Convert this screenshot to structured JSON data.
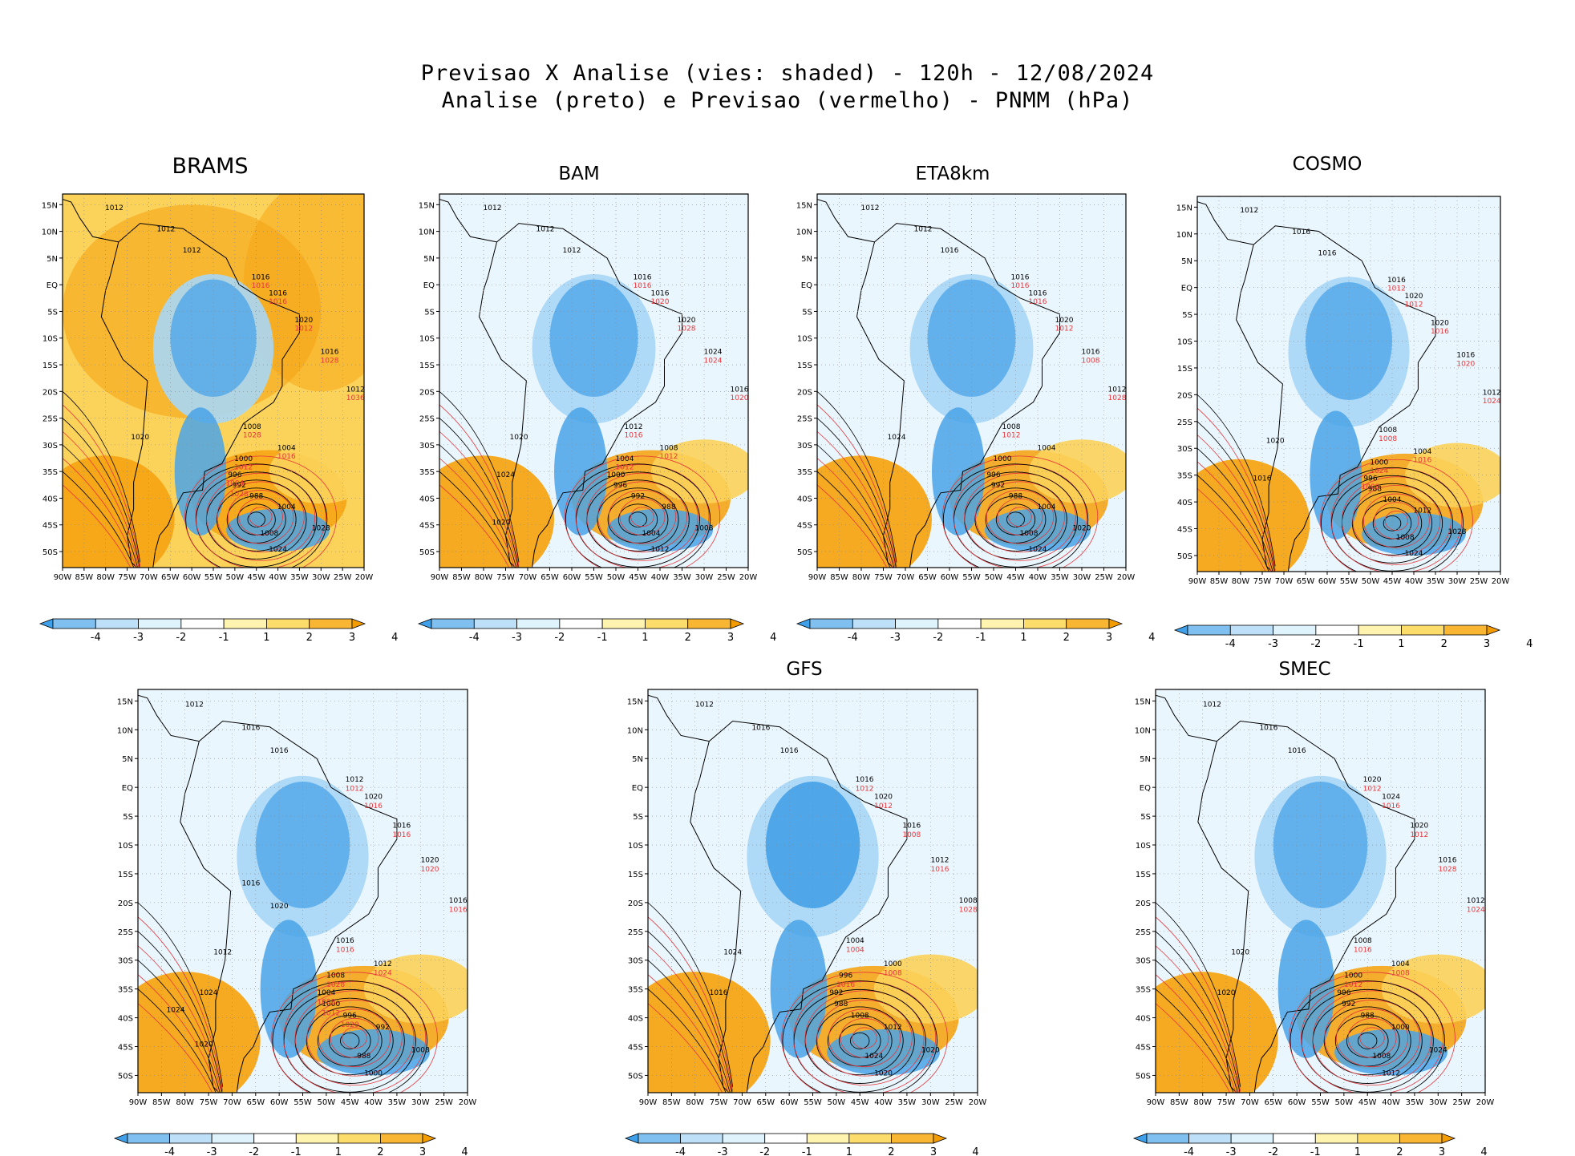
{
  "header": {
    "line1": "Previsao X Analise (vies: shaded) - 120h - 12/08/2024",
    "line2": "Analise (preto) e Previsao (vermelho) - PNMM (hPa)"
  },
  "lon_labels": [
    "90W",
    "85W",
    "80W",
    "75W",
    "70W",
    "65W",
    "60W",
    "55W",
    "50W",
    "45W",
    "40W",
    "35W",
    "30W",
    "25W",
    "20W"
  ],
  "lat_labels": [
    "15N",
    "10N",
    "5N",
    "EQ",
    "5S",
    "10S",
    "15S",
    "20S",
    "25S",
    "30S",
    "35S",
    "40S",
    "45S",
    "50S"
  ],
  "colorbar": {
    "ticks": [
      "-4",
      "-3",
      "-2",
      "-1",
      "1",
      "2",
      "3",
      "4"
    ],
    "colors": [
      "#3f9fe8",
      "#7fc0f0",
      "#bde0f8",
      "#dff3fd",
      "#ffffff",
      "#fff3b0",
      "#fcdc6a",
      "#f8b632",
      "#f39c00"
    ]
  },
  "colors": {
    "analysis": "#000000",
    "forecast": "#e8363a",
    "warm": "#f5a515",
    "warm_light": "#fcd35a",
    "cold": "#4aa3e8",
    "cold_light": "#a8d7f6"
  },
  "panels": [
    {
      "id": "brams",
      "title": "BRAMS",
      "labels_black": [
        "1012",
        "1012",
        "1012",
        "1016",
        "1016",
        "1020",
        "1016",
        "1012",
        "1008",
        "1004",
        "1000",
        "996",
        "992",
        "988",
        "1004",
        "1008",
        "1024",
        "1028",
        "1020"
      ],
      "labels_red": [
        "1016",
        "1016",
        "1012",
        "1028",
        "1036",
        "1028",
        "1016",
        "1012",
        "1004",
        "1028"
      ]
    },
    {
      "id": "bam",
      "title": "BAM",
      "labels_black": [
        "1012",
        "1012",
        "1012",
        "1016",
        "1016",
        "1020",
        "1024",
        "1016",
        "1012",
        "1008",
        "1004",
        "1000",
        "996",
        "992",
        "988",
        "1004",
        "1012",
        "1008",
        "1020",
        "1024",
        "1020"
      ],
      "labels_red": [
        "1016",
        "1020",
        "1028",
        "1024",
        "1020",
        "1016",
        "1012",
        "1012"
      ]
    },
    {
      "id": "eta8km",
      "title": "ETA8km",
      "labels_black": [
        "1012",
        "1012",
        "1016",
        "1016",
        "1016",
        "1020",
        "1016",
        "1012",
        "1008",
        "1004",
        "1000",
        "996",
        "992",
        "988",
        "1004",
        "1008",
        "1024",
        "1020",
        "1024"
      ],
      "labels_red": [
        "1016",
        "1016",
        "1012",
        "1008",
        "1028",
        "1012"
      ]
    },
    {
      "id": "cosmo",
      "title": "COSMO",
      "labels_black": [
        "1012",
        "1016",
        "1016",
        "1016",
        "1020",
        "1020",
        "1016",
        "1012",
        "1008",
        "1004",
        "1000",
        "996",
        "988",
        "1004",
        "1012",
        "1008",
        "1024",
        "1028",
        "1020",
        "1016"
      ],
      "labels_red": [
        "1012",
        "1012",
        "1016",
        "1020",
        "1024",
        "1008",
        "1016",
        "1024",
        "1008"
      ]
    },
    {
      "id": "panel5",
      "title": "",
      "labels_black": [
        "1012",
        "1016",
        "1016",
        "1012",
        "1020",
        "1016",
        "1020",
        "1016",
        "1016",
        "1012",
        "1008",
        "1004",
        "1000",
        "996",
        "992",
        "988",
        "1000",
        "1008",
        "1012",
        "1024",
        "1020",
        "1024",
        "1020",
        "1016"
      ],
      "labels_red": [
        "1012",
        "1016",
        "1016",
        "1020",
        "1016",
        "1016",
        "1024",
        "1028",
        "1008",
        "1012",
        "1020"
      ]
    },
    {
      "id": "gfs",
      "title": "GFS",
      "labels_black": [
        "1012",
        "1016",
        "1016",
        "1016",
        "1020",
        "1016",
        "1012",
        "1008",
        "1004",
        "1000",
        "996",
        "992",
        "988",
        "1008",
        "1012",
        "1024",
        "1020",
        "1020",
        "1024",
        "1016"
      ],
      "labels_red": [
        "1012",
        "1012",
        "1008",
        "1016",
        "1028",
        "1004",
        "1008",
        "1016"
      ]
    },
    {
      "id": "smec",
      "title": "SMEC",
      "labels_black": [
        "1012",
        "1016",
        "1016",
        "1020",
        "1024",
        "1020",
        "1016",
        "1012",
        "1008",
        "1004",
        "1000",
        "996",
        "992",
        "988",
        "1000",
        "1008",
        "1012",
        "1024",
        "1020",
        "1020"
      ],
      "labels_red": [
        "1012",
        "1016",
        "1012",
        "1028",
        "1024",
        "1016",
        "1008",
        "1012"
      ]
    }
  ]
}
